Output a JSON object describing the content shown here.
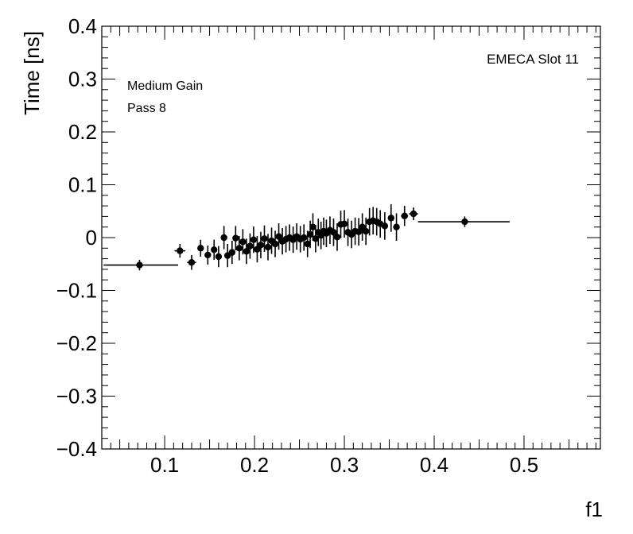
{
  "chart_data": {
    "type": "scatter",
    "xlabel": "f1",
    "ylabel": "Time [ns]",
    "xlim": [
      0.03,
      0.585
    ],
    "ylim": [
      -0.4,
      0.4
    ],
    "x_ticks": [
      0.1,
      0.2,
      0.3,
      0.4,
      0.5
    ],
    "x_tick_labels": [
      "0.1",
      "0.2",
      "0.3",
      "0.4",
      "0.5"
    ],
    "y_ticks": [
      -0.4,
      -0.3,
      -0.2,
      -0.1,
      0,
      0.1,
      0.2,
      0.3,
      0.4
    ],
    "y_tick_labels": [
      "−0.4",
      "−0.3",
      "−0.2",
      "−0.1",
      "0",
      "0.1",
      "0.2",
      "0.3",
      "0.4"
    ],
    "annotations": {
      "top_right": "EMECA Slot 11",
      "line1": "Medium Gain",
      "line2": "Pass 8"
    },
    "marker_color": "#000000",
    "points": [
      {
        "x": 0.072,
        "y": -0.052,
        "xerr": [
          0.04,
          0.043
        ],
        "yerr": 0.01
      },
      {
        "x": 0.117,
        "y": -0.025,
        "xerr": [
          0.006,
          0.006
        ],
        "yerr": 0.013
      },
      {
        "x": 0.13,
        "y": -0.047,
        "xerr": [
          0.005,
          0.005
        ],
        "yerr": 0.014
      },
      {
        "x": 0.14,
        "y": -0.02,
        "xerr": [
          0.003,
          0.003
        ],
        "yerr": 0.016
      },
      {
        "x": 0.148,
        "y": -0.033,
        "xerr": [
          0.003,
          0.003
        ],
        "yerr": 0.018
      },
      {
        "x": 0.155,
        "y": -0.023,
        "xerr": [
          0.003,
          0.003
        ],
        "yerr": 0.019
      },
      {
        "x": 0.16,
        "y": -0.036,
        "xerr": [
          0.003,
          0.003
        ],
        "yerr": 0.02
      },
      {
        "x": 0.166,
        "y": 0.0,
        "xerr": [
          0.003,
          0.003
        ],
        "yerr": 0.022
      },
      {
        "x": 0.17,
        "y": -0.034,
        "xerr": [
          0.002,
          0.002
        ],
        "yerr": 0.022
      },
      {
        "x": 0.175,
        "y": -0.028,
        "xerr": [
          0.002,
          0.002
        ],
        "yerr": 0.022
      },
      {
        "x": 0.179,
        "y": -0.001,
        "xerr": [
          0.002,
          0.002
        ],
        "yerr": 0.023
      },
      {
        "x": 0.183,
        "y": -0.02,
        "xerr": [
          0.002,
          0.002
        ],
        "yerr": 0.023
      },
      {
        "x": 0.187,
        "y": -0.008,
        "xerr": [
          0.002,
          0.002
        ],
        "yerr": 0.024
      },
      {
        "x": 0.191,
        "y": -0.026,
        "xerr": [
          0.002,
          0.002
        ],
        "yerr": 0.024
      },
      {
        "x": 0.195,
        "y": -0.016,
        "xerr": [
          0.002,
          0.002
        ],
        "yerr": 0.024
      },
      {
        "x": 0.199,
        "y": -0.004,
        "xerr": [
          0.002,
          0.002
        ],
        "yerr": 0.025
      },
      {
        "x": 0.203,
        "y": -0.022,
        "xerr": [
          0.002,
          0.002
        ],
        "yerr": 0.025
      },
      {
        "x": 0.207,
        "y": -0.014,
        "xerr": [
          0.002,
          0.002
        ],
        "yerr": 0.025
      },
      {
        "x": 0.211,
        "y": -0.002,
        "xerr": [
          0.002,
          0.002
        ],
        "yerr": 0.025
      },
      {
        "x": 0.215,
        "y": -0.018,
        "xerr": [
          0.002,
          0.002
        ],
        "yerr": 0.025
      },
      {
        "x": 0.219,
        "y": -0.006,
        "xerr": [
          0.002,
          0.002
        ],
        "yerr": 0.025
      },
      {
        "x": 0.223,
        "y": -0.012,
        "xerr": [
          0.002,
          0.002
        ],
        "yerr": 0.025
      },
      {
        "x": 0.227,
        "y": 0.002,
        "xerr": [
          0.002,
          0.002
        ],
        "yerr": 0.025
      },
      {
        "x": 0.231,
        "y": -0.007,
        "xerr": [
          0.002,
          0.002
        ],
        "yerr": 0.025
      },
      {
        "x": 0.235,
        "y": -0.003,
        "xerr": [
          0.002,
          0.002
        ],
        "yerr": 0.025
      },
      {
        "x": 0.239,
        "y": 0.0,
        "xerr": [
          0.002,
          0.002
        ],
        "yerr": 0.025
      },
      {
        "x": 0.243,
        "y": -0.004,
        "xerr": [
          0.002,
          0.002
        ],
        "yerr": 0.025
      },
      {
        "x": 0.247,
        "y": 0.002,
        "xerr": [
          0.002,
          0.002
        ],
        "yerr": 0.025
      },
      {
        "x": 0.251,
        "y": -0.003,
        "xerr": [
          0.002,
          0.002
        ],
        "yerr": 0.025
      },
      {
        "x": 0.255,
        "y": 0.0,
        "xerr": [
          0.002,
          0.002
        ],
        "yerr": 0.025
      },
      {
        "x": 0.259,
        "y": -0.012,
        "xerr": [
          0.002,
          0.002
        ],
        "yerr": 0.025
      },
      {
        "x": 0.262,
        "y": 0.006,
        "xerr": [
          0.002,
          0.002
        ],
        "yerr": 0.026
      },
      {
        "x": 0.265,
        "y": 0.02,
        "xerr": [
          0.002,
          0.002
        ],
        "yerr": 0.026
      },
      {
        "x": 0.268,
        "y": -0.002,
        "xerr": [
          0.002,
          0.002
        ],
        "yerr": 0.026
      },
      {
        "x": 0.271,
        "y": 0.01,
        "xerr": [
          0.002,
          0.002
        ],
        "yerr": 0.026
      },
      {
        "x": 0.274,
        "y": 0.004,
        "xerr": [
          0.002,
          0.002
        ],
        "yerr": 0.026
      },
      {
        "x": 0.277,
        "y": 0.012,
        "xerr": [
          0.002,
          0.002
        ],
        "yerr": 0.026
      },
      {
        "x": 0.28,
        "y": 0.008,
        "xerr": [
          0.002,
          0.002
        ],
        "yerr": 0.026
      },
      {
        "x": 0.284,
        "y": 0.014,
        "xerr": [
          0.002,
          0.002
        ],
        "yerr": 0.026
      },
      {
        "x": 0.288,
        "y": 0.01,
        "xerr": [
          0.002,
          0.002
        ],
        "yerr": 0.026
      },
      {
        "x": 0.292,
        "y": 0.001,
        "xerr": [
          0.002,
          0.002
        ],
        "yerr": 0.026
      },
      {
        "x": 0.296,
        "y": 0.025,
        "xerr": [
          0.002,
          0.002
        ],
        "yerr": 0.026
      },
      {
        "x": 0.3,
        "y": 0.026,
        "xerr": [
          0.002,
          0.002
        ],
        "yerr": 0.026
      },
      {
        "x": 0.304,
        "y": 0.01,
        "xerr": [
          0.002,
          0.002
        ],
        "yerr": 0.026
      },
      {
        "x": 0.308,
        "y": 0.006,
        "xerr": [
          0.002,
          0.002
        ],
        "yerr": 0.026
      },
      {
        "x": 0.312,
        "y": 0.012,
        "xerr": [
          0.002,
          0.002
        ],
        "yerr": 0.026
      },
      {
        "x": 0.316,
        "y": 0.011,
        "xerr": [
          0.002,
          0.002
        ],
        "yerr": 0.026
      },
      {
        "x": 0.32,
        "y": 0.02,
        "xerr": [
          0.002,
          0.002
        ],
        "yerr": 0.026
      },
      {
        "x": 0.324,
        "y": 0.012,
        "xerr": [
          0.002,
          0.002
        ],
        "yerr": 0.026
      },
      {
        "x": 0.328,
        "y": 0.03,
        "xerr": [
          0.002,
          0.002
        ],
        "yerr": 0.026
      },
      {
        "x": 0.332,
        "y": 0.032,
        "xerr": [
          0.002,
          0.002
        ],
        "yerr": 0.026
      },
      {
        "x": 0.336,
        "y": 0.03,
        "xerr": [
          0.002,
          0.002
        ],
        "yerr": 0.026
      },
      {
        "x": 0.34,
        "y": 0.026,
        "xerr": [
          0.002,
          0.002
        ],
        "yerr": 0.026
      },
      {
        "x": 0.345,
        "y": 0.022,
        "xerr": [
          0.002,
          0.002
        ],
        "yerr": 0.026
      },
      {
        "x": 0.352,
        "y": 0.037,
        "xerr": [
          0.003,
          0.003
        ],
        "yerr": 0.026
      },
      {
        "x": 0.358,
        "y": 0.02,
        "xerr": [
          0.003,
          0.003
        ],
        "yerr": 0.026
      },
      {
        "x": 0.367,
        "y": 0.041,
        "xerr": [
          0.004,
          0.004
        ],
        "yerr": 0.019
      },
      {
        "x": 0.377,
        "y": 0.045,
        "xerr": [
          0.005,
          0.005
        ],
        "yerr": 0.012
      },
      {
        "x": 0.434,
        "y": 0.03,
        "xerr": [
          0.052,
          0.05
        ],
        "yerr": 0.01
      }
    ]
  }
}
